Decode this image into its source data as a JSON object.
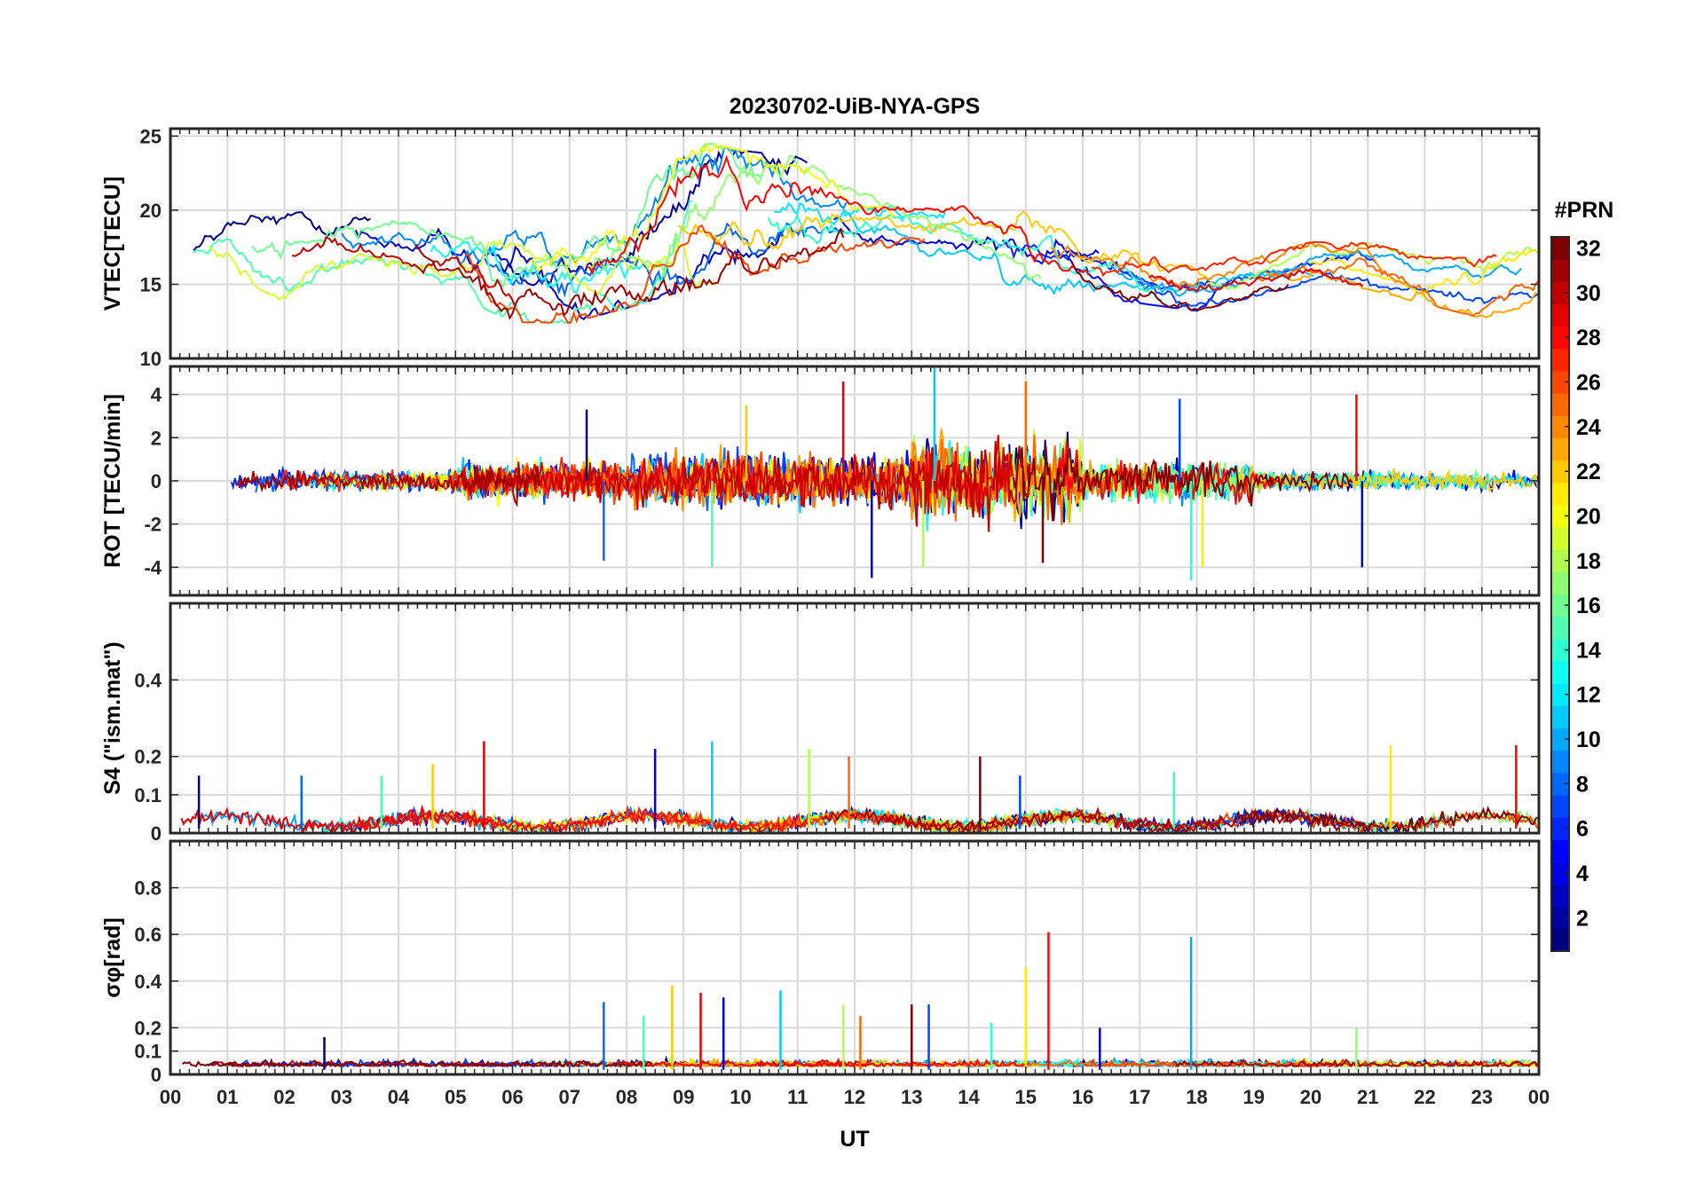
{
  "figure_title": "20230702-UiB-NYA-GPS",
  "colorbar": {
    "title": "#PRN",
    "ticks": [
      "2",
      "4",
      "6",
      "8",
      "10",
      "12",
      "14",
      "16",
      "18",
      "20",
      "22",
      "24",
      "26",
      "28",
      "30",
      "32"
    ],
    "range": [
      1,
      32
    ],
    "colormap": "jet"
  },
  "chart_data": [
    {
      "type": "line",
      "panel": "vtec",
      "ylabel": "VTEC[TECU]",
      "xlabel": "",
      "ylim": [
        10,
        25.5
      ],
      "yticks": [
        "10",
        "15",
        "20",
        "25"
      ],
      "xlim": [
        0,
        24
      ],
      "grid": true,
      "n_series": 32,
      "series_summary": "one trace per GPS PRN (1-32), colored by PRN; values wander between ~12 and ~25 TECU, peaking near 25 TECU around 09-10 UT, ~20 TECU at 12-15 UT, declining to ~14-16 TECU after 17 UT",
      "envelope": {
        "x": [
          0,
          1,
          2,
          3,
          4,
          5,
          6,
          7,
          8,
          9,
          10,
          11,
          12,
          13,
          14,
          15,
          16,
          17,
          18,
          19,
          20,
          21,
          22,
          23,
          24
        ],
        "min": [
          14.5,
          15.5,
          13.5,
          15.5,
          16,
          14,
          12,
          12,
          13,
          14,
          15,
          16,
          17,
          17,
          16,
          14,
          14,
          13.5,
          13,
          14,
          15,
          14.5,
          13.5,
          12.5,
          13.5
        ],
        "max": [
          18.5,
          21,
          20,
          21,
          20,
          20,
          21,
          20,
          21,
          25.5,
          24.5,
          24,
          21.5,
          20.5,
          20.5,
          22,
          19,
          18,
          17,
          17,
          18,
          18,
          17,
          17,
          18
        ]
      }
    },
    {
      "type": "line",
      "panel": "rot",
      "ylabel": "ROT [TECU/min]",
      "xlabel": "",
      "ylim": [
        -5.3,
        5.3
      ],
      "yticks": [
        "-4",
        "-2",
        "0",
        "2",
        "4"
      ],
      "xlim": [
        0,
        24
      ],
      "grid": true,
      "n_series": 32,
      "series_summary": "rate of TEC per PRN, noise around 0 growing from about ±0.5 at 00-05 UT to about ±2-4 at 09-19 UT with spikes near ±4.5, calmer after 19 UT",
      "spikes": {
        "x": [
          7.3,
          7.6,
          9.5,
          10.1,
          11.8,
          12.3,
          13.4,
          13.2,
          15.0,
          15.3,
          17.7,
          17.9,
          18.1,
          20.8,
          20.9
        ],
        "y": [
          3.3,
          -3.7,
          -4.0,
          3.5,
          4.6,
          -4.5,
          5.3,
          -4.0,
          4.6,
          -3.8,
          3.8,
          -4.6,
          -4.0,
          4.0,
          -4.0
        ]
      }
    },
    {
      "type": "line",
      "panel": "s4",
      "ylabel": "S4 (\"ism.mat\")",
      "xlabel": "",
      "ylim": [
        0,
        0.6
      ],
      "yticks": [
        "0",
        "0.1",
        "0.2",
        "0.4"
      ],
      "xlim": [
        0,
        24
      ],
      "grid": true,
      "n_series": 32,
      "series_summary": "amplitude scintillation index per PRN, mostly 0.01-0.06 with bursts to ~0.1-0.24",
      "peaks": {
        "x": [
          0.5,
          2.3,
          3.7,
          4.6,
          5.5,
          8.5,
          9.5,
          11.2,
          11.9,
          14.2,
          14.9,
          17.6,
          21.4,
          23.6
        ],
        "y": [
          0.15,
          0.15,
          0.15,
          0.18,
          0.24,
          0.22,
          0.24,
          0.22,
          0.2,
          0.2,
          0.15,
          0.16,
          0.23,
          0.23
        ]
      }
    },
    {
      "type": "line",
      "panel": "sigma_phi",
      "ylabel": "σφ[rad]",
      "xlabel": "UT",
      "ylim": [
        0,
        1.0
      ],
      "yticks": [
        "0",
        "0.1",
        "0.2",
        "0.4",
        "0.6",
        "0.8"
      ],
      "xlim": [
        0,
        24
      ],
      "grid": true,
      "n_series": 32,
      "series_summary": "phase scintillation index per PRN, baseline ~0.03-0.05 with spikes; largest near 15.4 UT (0.61) and 17.9 UT (0.59)",
      "peaks": {
        "x": [
          2.7,
          7.6,
          8.3,
          8.8,
          9.3,
          9.7,
          10.7,
          11.8,
          12.1,
          13.0,
          13.3,
          14.4,
          15.0,
          15.4,
          16.3,
          17.9,
          20.8
        ],
        "y": [
          0.16,
          0.31,
          0.25,
          0.38,
          0.35,
          0.33,
          0.36,
          0.3,
          0.25,
          0.3,
          0.3,
          0.22,
          0.46,
          0.61,
          0.2,
          0.59,
          0.2
        ]
      }
    }
  ],
  "x_axis": {
    "label": "UT",
    "ticks": [
      "00",
      "01",
      "02",
      "03",
      "04",
      "05",
      "06",
      "07",
      "08",
      "09",
      "10",
      "11",
      "12",
      "13",
      "14",
      "15",
      "16",
      "17",
      "18",
      "19",
      "20",
      "21",
      "22",
      "23",
      "00"
    ]
  }
}
